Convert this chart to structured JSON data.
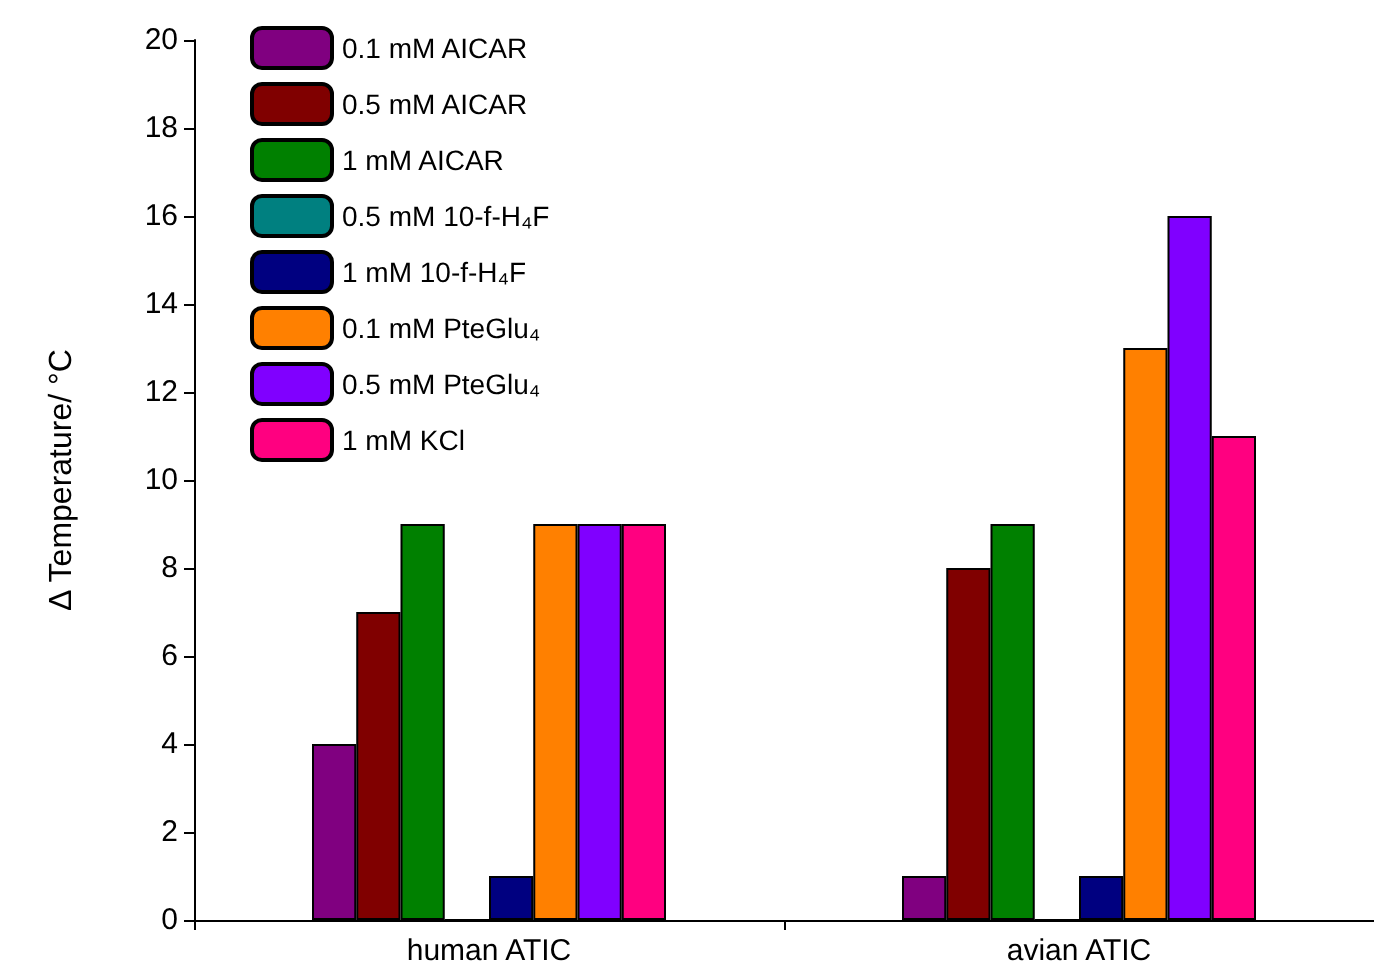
{
  "chart_data": {
    "type": "bar",
    "ylabel": "Δ Temperature/ °C",
    "categories": [
      "human ATIC",
      "avian ATIC"
    ],
    "series": [
      {
        "name": "0.1 mM AICAR",
        "color": "#800080",
        "values": [
          4,
          1
        ]
      },
      {
        "name": "0.5 mM AICAR",
        "color": "#800000",
        "values": [
          7,
          8
        ]
      },
      {
        "name": "1 mM AICAR",
        "color": "#008000",
        "values": [
          9,
          9
        ]
      },
      {
        "name": "0.5 mM 10-f-H₄F",
        "color": "#008080",
        "values": [
          0,
          0
        ]
      },
      {
        "name": "1 mM 10-f-H₄F",
        "color": "#000080",
        "values": [
          1,
          1
        ]
      },
      {
        "name": "0.1 mM PteGlu₄",
        "color": "#ff8000",
        "values": [
          9,
          13
        ]
      },
      {
        "name": "0.5 mM PteGlu₄",
        "color": "#8000ff",
        "values": [
          9,
          16
        ]
      },
      {
        "name": "1 mM KCl",
        "color": "#ff0080",
        "values": [
          9,
          11
        ]
      }
    ],
    "ylim": [
      0,
      20
    ],
    "yticks": [
      0,
      2,
      4,
      6,
      8,
      10,
      12,
      14,
      16,
      18,
      20
    ],
    "grid": false,
    "legend": "top left"
  }
}
